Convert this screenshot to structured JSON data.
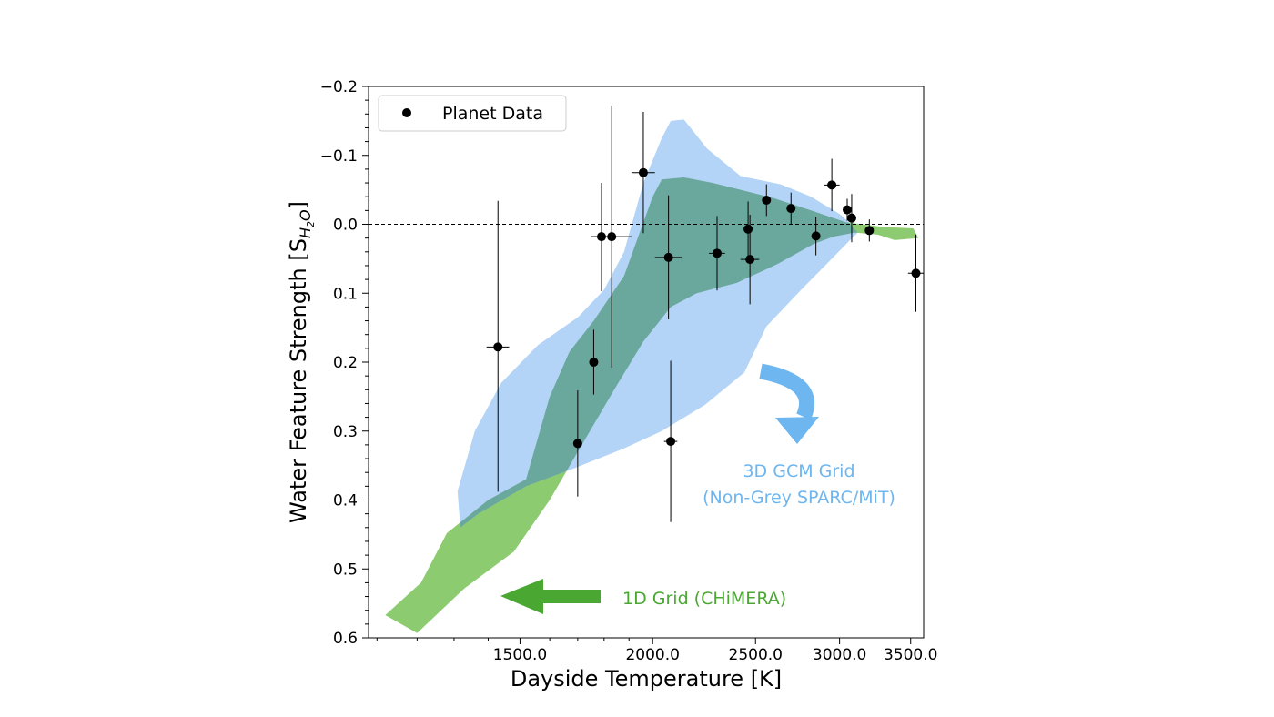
{
  "chart_data": {
    "type": "scatter",
    "title": "",
    "xlabel": "Dayside Temperature [K]",
    "ylabel_main": "Water Feature Strength [S",
    "ylabel_sub": "H",
    "ylabel_sub2": "2",
    "ylabel_sub3": "O",
    "ylabel_close": "]",
    "x_scale": "log",
    "xlim": [
      1080,
      3600
    ],
    "ylim": [
      0.6,
      -0.2
    ],
    "y_inverted": true,
    "x_ticks": [
      1500,
      2000,
      2500,
      3000,
      3500
    ],
    "x_tick_labels": [
      "1500.0",
      "2000.0",
      "2500.0",
      "3000.0",
      "3500.0"
    ],
    "y_ticks": [
      -0.2,
      -0.1,
      0.0,
      0.1,
      0.2,
      0.3,
      0.4,
      0.5,
      0.6
    ],
    "y_tick_labels": [
      "−0.2",
      "−0.1",
      "0.0",
      "0.1",
      "0.2",
      "0.3",
      "0.4",
      "0.5",
      "0.6"
    ],
    "zero_line": true,
    "legend": {
      "label": "Planet Data",
      "placement": "upper-left"
    },
    "colors": {
      "points": "#000000",
      "gcm_band": "#a6cdf5",
      "chimera_band": "#8ccb70",
      "overlap": "#6aa89e",
      "blue_annotation": "#6db6ef",
      "green_annotation": "#4aa832"
    },
    "series": [
      {
        "name": "Planet Data",
        "points": [
          {
            "x": 1430,
            "y": 0.178,
            "xerr": 35,
            "yerr_low": 0.21,
            "yerr_high": 0.212
          },
          {
            "x": 1700,
            "y": 0.318,
            "xerr": 15,
            "yerr_low": 0.077,
            "yerr_high": 0.077
          },
          {
            "x": 1760,
            "y": 0.2,
            "xerr": 15,
            "yerr_low": 0.047,
            "yerr_high": 0.047
          },
          {
            "x": 1790,
            "y": 0.018,
            "xerr": 40,
            "yerr_low": 0.079,
            "yerr_high": 0.078
          },
          {
            "x": 1830,
            "y": 0.018,
            "xerr": 80,
            "yerr_low": 0.19,
            "yerr_high": 0.19
          },
          {
            "x": 1960,
            "y": -0.075,
            "xerr": 50,
            "yerr_low": 0.088,
            "yerr_high": 0.088
          },
          {
            "x": 2070,
            "y": 0.048,
            "xerr": 60,
            "yerr_low": 0.09,
            "yerr_high": 0.09
          },
          {
            "x": 2080,
            "y": 0.315,
            "xerr": 30,
            "yerr_low": 0.117,
            "yerr_high": 0.117
          },
          {
            "x": 2300,
            "y": 0.042,
            "xerr": 40,
            "yerr_low": 0.054,
            "yerr_high": 0.054
          },
          {
            "x": 2460,
            "y": 0.007,
            "xerr": 15,
            "yerr_low": 0.04,
            "yerr_high": 0.04
          },
          {
            "x": 2470,
            "y": 0.051,
            "xerr": 50,
            "yerr_low": 0.065,
            "yerr_high": 0.065
          },
          {
            "x": 2560,
            "y": -0.035,
            "xerr": 20,
            "yerr_low": 0.023,
            "yerr_high": 0.023
          },
          {
            "x": 2700,
            "y": -0.023,
            "xerr": 15,
            "yerr_low": 0.023,
            "yerr_high": 0.023
          },
          {
            "x": 2850,
            "y": 0.017,
            "xerr": 20,
            "yerr_low": 0.028,
            "yerr_high": 0.028
          },
          {
            "x": 2950,
            "y": -0.057,
            "xerr": 50,
            "yerr_low": 0.038,
            "yerr_high": 0.038
          },
          {
            "x": 3050,
            "y": -0.021,
            "xerr": 20,
            "yerr_low": 0.016,
            "yerr_high": 0.016
          },
          {
            "x": 3080,
            "y": -0.009,
            "xerr": 20,
            "yerr_low": 0.035,
            "yerr_high": 0.035
          },
          {
            "x": 3200,
            "y": 0.009,
            "xerr": 20,
            "yerr_low": 0.016,
            "yerr_high": 0.016
          },
          {
            "x": 3540,
            "y": 0.071,
            "xerr": 60,
            "yerr_low": 0.056,
            "yerr_high": 0.056
          }
        ]
      },
      {
        "name": "3D GCM Grid (Non-Grey SPARC/MiT)",
        "type": "band",
        "polygon": [
          [
            1310,
            0.387
          ],
          [
            1360,
            0.3
          ],
          [
            1440,
            0.23
          ],
          [
            1560,
            0.175
          ],
          [
            1700,
            0.135
          ],
          [
            1800,
            0.095
          ],
          [
            1880,
            0.04
          ],
          [
            1960,
            -0.06
          ],
          [
            2040,
            -0.125
          ],
          [
            2080,
            -0.15
          ],
          [
            2140,
            -0.152
          ],
          [
            2250,
            -0.11
          ],
          [
            2420,
            -0.07
          ],
          [
            2640,
            -0.058
          ],
          [
            2820,
            -0.04
          ],
          [
            3000,
            -0.015
          ],
          [
            3060,
            -0.003
          ],
          [
            3120,
            0.012
          ],
          [
            3060,
            0.025
          ],
          [
            2950,
            0.05
          ],
          [
            2760,
            0.095
          ],
          [
            2560,
            0.148
          ],
          [
            2440,
            0.215
          ],
          [
            2240,
            0.262
          ],
          [
            2040,
            0.3
          ],
          [
            1880,
            0.325
          ],
          [
            1700,
            0.352
          ],
          [
            1520,
            0.38
          ],
          [
            1370,
            0.42
          ],
          [
            1318,
            0.44
          ]
        ]
      },
      {
        "name": "1D Grid (CHiMERA)",
        "type": "band",
        "polygon": [
          [
            1120,
            0.567
          ],
          [
            1210,
            0.52
          ],
          [
            1280,
            0.448
          ],
          [
            1400,
            0.4
          ],
          [
            1520,
            0.37
          ],
          [
            1600,
            0.25
          ],
          [
            1670,
            0.185
          ],
          [
            1760,
            0.14
          ],
          [
            1880,
            0.075
          ],
          [
            2000,
            -0.04
          ],
          [
            2040,
            -0.065
          ],
          [
            2140,
            -0.068
          ],
          [
            2280,
            -0.06
          ],
          [
            2420,
            -0.05
          ],
          [
            2600,
            -0.038
          ],
          [
            2820,
            -0.02
          ],
          [
            3040,
            -0.003
          ],
          [
            3300,
            0.004
          ],
          [
            3520,
            0.006
          ],
          [
            3560,
            0.02
          ],
          [
            3380,
            0.023
          ],
          [
            3260,
            0.015
          ],
          [
            3100,
            0.012
          ],
          [
            2960,
            0.018
          ],
          [
            2840,
            0.028
          ],
          [
            2620,
            0.058
          ],
          [
            2400,
            0.085
          ],
          [
            2200,
            0.1
          ],
          [
            2080,
            0.12
          ],
          [
            1960,
            0.17
          ],
          [
            1840,
            0.24
          ],
          [
            1700,
            0.33
          ],
          [
            1600,
            0.4
          ],
          [
            1480,
            0.475
          ],
          [
            1330,
            0.528
          ],
          [
            1200,
            0.593
          ]
        ]
      }
    ],
    "annotations": [
      {
        "id": "gcm_line1",
        "text": "3D GCM Grid",
        "color": "blue"
      },
      {
        "id": "gcm_line2",
        "text": "(Non-Grey SPARC/MiT)",
        "color": "blue"
      },
      {
        "id": "chimera",
        "text": "1D Grid (CHiMERA)",
        "color": "green"
      }
    ]
  }
}
